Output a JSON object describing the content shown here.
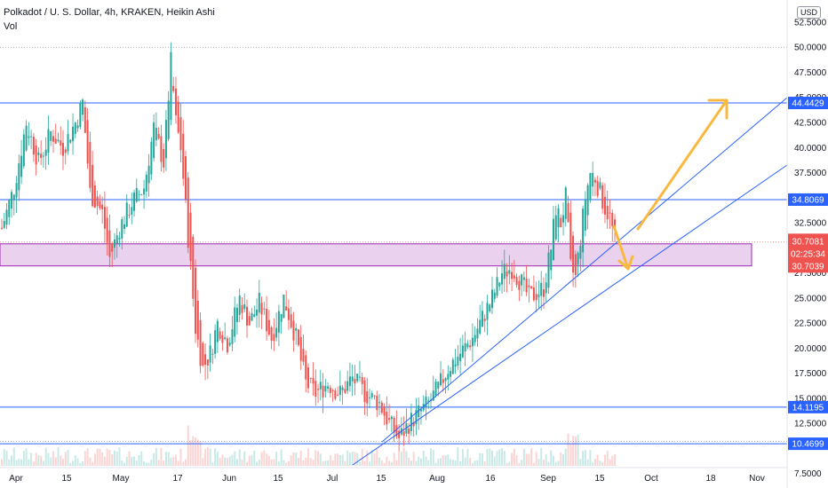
{
  "header": {
    "title": "Polkadot / U. S. Dollar, 4h, KRAKEN, Heikin Ashi",
    "volume_label": "Vol",
    "currency_badge": "USD"
  },
  "colors": {
    "up": "#26a69a",
    "down": "#ef5350",
    "hline": "#2962ff",
    "trend": "#2962ff",
    "zone_fill": "rgba(186,104,200,0.30)",
    "zone_border": "#9c27b0",
    "arrow": "#f9b940"
  },
  "chart_data": {
    "type": "candlestick",
    "ylim": [
      6.5,
      54
    ],
    "x_ticks": [
      "Apr",
      "15",
      "May",
      "17",
      "Jun",
      "15",
      "Jul",
      "15",
      "Aug",
      "16",
      "Sep",
      "15",
      "Oct",
      "18",
      "Nov"
    ],
    "y_ticks": [
      "52.5000",
      "50.0000",
      "47.5000",
      "45.0000",
      "42.5000",
      "40.0000",
      "37.5000",
      "32.5000",
      "27.5000",
      "25.0000",
      "22.5000",
      "20.0000",
      "17.5000",
      "15.0000",
      "12.5000",
      "7.5000"
    ],
    "horizontal_levels": [
      {
        "label": "44.4429",
        "value": 44.4429
      },
      {
        "label": "34.8069",
        "value": 34.8069
      },
      {
        "label": "14.1195",
        "value": 14.1195
      },
      {
        "label": "10.4699",
        "value": 10.4699
      }
    ],
    "price_labels": [
      {
        "label": "30.7081",
        "value": 30.7081
      },
      {
        "label": "02:25:34",
        "value": 29.85
      },
      {
        "label": "30.7039",
        "value": 28.95
      }
    ],
    "zone": {
      "top": 30.4,
      "bottom": 28.2
    },
    "series": [
      {
        "x": 0,
        "y": 32.0
      },
      {
        "x": 5,
        "y": 36.0
      },
      {
        "x": 10,
        "y": 42.5
      },
      {
        "x": 15,
        "y": 38.5
      },
      {
        "x": 20,
        "y": 41.5
      },
      {
        "x": 25,
        "y": 40.0
      },
      {
        "x": 30,
        "y": 42.5
      },
      {
        "x": 33,
        "y": 44.5
      },
      {
        "x": 36,
        "y": 35.5
      },
      {
        "x": 41,
        "y": 33.5
      },
      {
        "x": 44,
        "y": 29.0
      },
      {
        "x": 48,
        "y": 32.0
      },
      {
        "x": 53,
        "y": 34.5
      },
      {
        "x": 58,
        "y": 36.0
      },
      {
        "x": 62,
        "y": 42.0
      },
      {
        "x": 66,
        "y": 38.5
      },
      {
        "x": 69,
        "y": 48.5
      },
      {
        "x": 71,
        "y": 42.5
      },
      {
        "x": 73,
        "y": 40.0
      },
      {
        "x": 75,
        "y": 34.0
      },
      {
        "x": 77,
        "y": 28.0
      },
      {
        "x": 79,
        "y": 22.0
      },
      {
        "x": 82,
        "y": 18.0
      },
      {
        "x": 85,
        "y": 19.5
      },
      {
        "x": 88,
        "y": 22.5
      },
      {
        "x": 92,
        "y": 20.5
      },
      {
        "x": 97,
        "y": 25.0
      },
      {
        "x": 101,
        "y": 22.5
      },
      {
        "x": 105,
        "y": 24.5
      },
      {
        "x": 110,
        "y": 21.0
      },
      {
        "x": 115,
        "y": 25.0
      },
      {
        "x": 120,
        "y": 21.0
      },
      {
        "x": 124,
        "y": 16.5
      },
      {
        "x": 128,
        "y": 15.5
      },
      {
        "x": 133,
        "y": 16.5
      },
      {
        "x": 138,
        "y": 15.5
      },
      {
        "x": 143,
        "y": 17.0
      },
      {
        "x": 148,
        "y": 15.5
      },
      {
        "x": 154,
        "y": 14.5
      },
      {
        "x": 158,
        "y": 12.5
      },
      {
        "x": 162,
        "y": 11.0
      },
      {
        "x": 166,
        "y": 12.5
      },
      {
        "x": 170,
        "y": 13.5
      },
      {
        "x": 174,
        "y": 14.5
      },
      {
        "x": 178,
        "y": 16.0
      },
      {
        "x": 182,
        "y": 18.0
      },
      {
        "x": 187,
        "y": 19.5
      },
      {
        "x": 192,
        "y": 21.0
      },
      {
        "x": 196,
        "y": 23.0
      },
      {
        "x": 200,
        "y": 25.0
      },
      {
        "x": 204,
        "y": 27.5
      },
      {
        "x": 208,
        "y": 28.0
      },
      {
        "x": 212,
        "y": 26.5
      },
      {
        "x": 215,
        "y": 25.0
      },
      {
        "x": 218,
        "y": 25.5
      },
      {
        "x": 221,
        "y": 26.0
      },
      {
        "x": 224,
        "y": 30.0
      },
      {
        "x": 226,
        "y": 34.0
      },
      {
        "x": 228,
        "y": 32.5
      },
      {
        "x": 230,
        "y": 35.0
      },
      {
        "x": 232,
        "y": 28.0
      },
      {
        "x": 234,
        "y": 27.0
      },
      {
        "x": 236,
        "y": 31.0
      },
      {
        "x": 238,
        "y": 35.0
      },
      {
        "x": 240,
        "y": 37.5
      },
      {
        "x": 242,
        "y": 37.0
      },
      {
        "x": 244,
        "y": 35.5
      },
      {
        "x": 246,
        "y": 34.0
      },
      {
        "x": 248,
        "y": 33.0
      },
      {
        "x": 250,
        "y": 30.7
      }
    ]
  }
}
